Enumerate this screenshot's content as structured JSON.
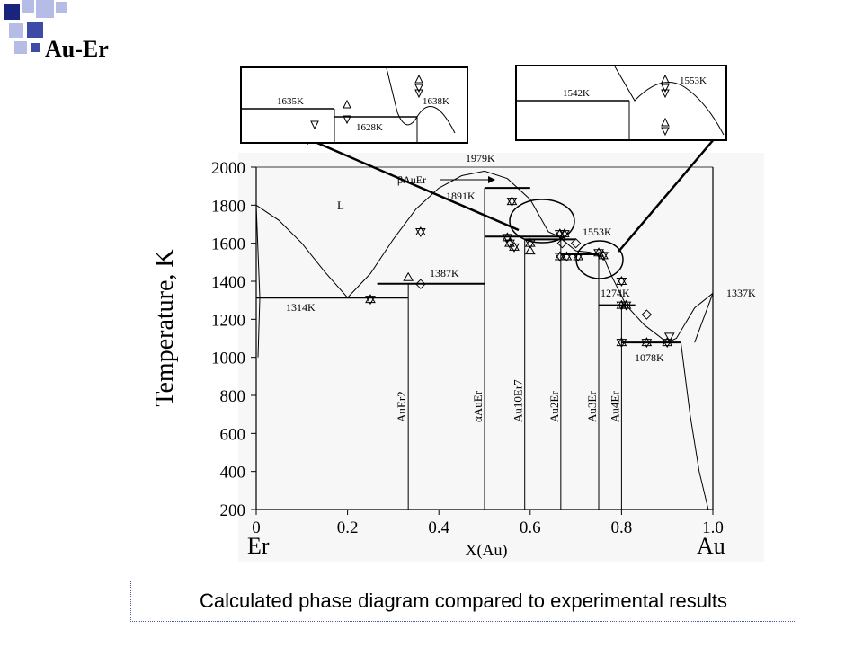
{
  "slide": {
    "title": "Au-Er",
    "caption": "Calculated phase diagram compared to experimental results"
  },
  "colors": {
    "square_dark": "#1a237e",
    "square_mid": "#3d4aa6",
    "square_light": "#b5bde6",
    "caption_border": "#4a5aa8"
  },
  "chart_data": {
    "type": "phase-diagram",
    "xlabel": "X(Au)",
    "ylabel": "Temperature, K",
    "xlim": [
      0,
      1.0
    ],
    "ylim": [
      200,
      2000
    ],
    "x_ticks": [
      "0",
      "0.2",
      "0.4",
      "0.6",
      "0.8",
      "1.0"
    ],
    "x_tick_values": [
      0,
      0.2,
      0.4,
      0.6,
      0.8,
      1.0
    ],
    "y_ticks": [
      "200",
      "400",
      "600",
      "800",
      "1000",
      "1200",
      "1400",
      "1600",
      "1800",
      "2000"
    ],
    "y_tick_values": [
      200,
      400,
      600,
      800,
      1000,
      1200,
      1400,
      1600,
      1800,
      2000
    ],
    "left_element": "Er",
    "right_element": "Au",
    "liquid_label": "L",
    "compounds": [
      {
        "name": "AuEr2",
        "x": 0.333
      },
      {
        "name": "αAuEr",
        "x": 0.5
      },
      {
        "name": "Au10Er7",
        "x": 0.588
      },
      {
        "name": "Au2Er",
        "x": 0.667
      },
      {
        "name": "Au3Er",
        "x": 0.75
      },
      {
        "name": "Au4Er",
        "x": 0.8
      }
    ],
    "beta_phase": {
      "name": "βAuEr",
      "x_range": [
        0.5,
        0.6
      ],
      "T": 1891
    },
    "liquidus": [
      [
        0,
        1800
      ],
      [
        0.05,
        1720
      ],
      [
        0.1,
        1600
      ],
      [
        0.15,
        1450
      ],
      [
        0.2,
        1314
      ],
      [
        0.25,
        1440
      ],
      [
        0.3,
        1620
      ],
      [
        0.35,
        1780
      ],
      [
        0.4,
        1890
      ],
      [
        0.45,
        1955
      ],
      [
        0.5,
        1979
      ],
      [
        0.55,
        1940
      ],
      [
        0.6,
        1830
      ],
      [
        0.64,
        1660
      ],
      [
        0.66,
        1638
      ],
      [
        0.68,
        1600
      ],
      [
        0.7,
        1560
      ],
      [
        0.73,
        1553
      ],
      [
        0.76,
        1530
      ],
      [
        0.78,
        1420
      ],
      [
        0.81,
        1274
      ],
      [
        0.85,
        1170
      ],
      [
        0.9,
        1078
      ],
      [
        0.92,
        1100
      ],
      [
        0.96,
        1260
      ],
      [
        1.0,
        1337
      ]
    ],
    "solidus_au_side": [
      [
        0.93,
        1078
      ],
      [
        0.95,
        700
      ],
      [
        0.97,
        400
      ],
      [
        0.99,
        200
      ]
    ],
    "invariants": [
      {
        "label": "1314K",
        "T": 1314,
        "x_range": [
          0.0,
          0.333
        ]
      },
      {
        "label": "1387K",
        "T": 1387,
        "x_range": [
          0.265,
          0.5
        ]
      },
      {
        "label": "1891K",
        "T": 1891,
        "x_range": [
          0.5,
          0.6
        ]
      },
      {
        "label": "1979K",
        "T": 1979
      },
      {
        "label": "1553K",
        "T": 1553
      },
      {
        "label": "1274K",
        "T": 1274,
        "x_range": [
          0.75,
          0.83
        ]
      },
      {
        "label": "1078K",
        "T": 1078,
        "x_range": [
          0.8,
          0.93
        ]
      },
      {
        "label": "1337K",
        "T": 1337
      }
    ],
    "three_phase_lines": [
      {
        "T": 1635,
        "x_range": [
          0.5,
          0.67
        ]
      },
      {
        "T": 1620,
        "x_range": [
          0.588,
          0.7
        ]
      },
      {
        "T": 1542,
        "x_range": [
          0.667,
          0.75
        ]
      }
    ],
    "experimental_points": [
      {
        "x": 0.25,
        "T": 1305,
        "type": "star"
      },
      {
        "x": 0.333,
        "T": 1420,
        "type": "triangle-up"
      },
      {
        "x": 0.36,
        "T": 1385,
        "type": "diamond"
      },
      {
        "x": 0.36,
        "T": 1660,
        "type": "hourglass"
      },
      {
        "x": 0.56,
        "T": 1820,
        "type": "star"
      },
      {
        "x": 0.55,
        "T": 1630,
        "type": "star"
      },
      {
        "x": 0.555,
        "T": 1600,
        "type": "star"
      },
      {
        "x": 0.565,
        "T": 1580,
        "type": "star"
      },
      {
        "x": 0.6,
        "T": 1600,
        "type": "star"
      },
      {
        "x": 0.6,
        "T": 1560,
        "type": "triangle-up"
      },
      {
        "x": 0.665,
        "T": 1650,
        "type": "hourglass"
      },
      {
        "x": 0.675,
        "T": 1650,
        "type": "star"
      },
      {
        "x": 0.67,
        "T": 1600,
        "type": "diamond"
      },
      {
        "x": 0.665,
        "T": 1530,
        "type": "star"
      },
      {
        "x": 0.68,
        "T": 1530,
        "type": "star"
      },
      {
        "x": 0.7,
        "T": 1600,
        "type": "diamond"
      },
      {
        "x": 0.705,
        "T": 1530,
        "type": "hourglass"
      },
      {
        "x": 0.75,
        "T": 1550,
        "type": "star"
      },
      {
        "x": 0.76,
        "T": 1535,
        "type": "hourglass"
      },
      {
        "x": 0.8,
        "T": 1400,
        "type": "hourglass"
      },
      {
        "x": 0.8,
        "T": 1274,
        "type": "hourglass"
      },
      {
        "x": 0.81,
        "T": 1274,
        "type": "star"
      },
      {
        "x": 0.855,
        "T": 1225,
        "type": "diamond"
      },
      {
        "x": 0.8,
        "T": 1078,
        "type": "hourglass"
      },
      {
        "x": 0.855,
        "T": 1078,
        "type": "star"
      },
      {
        "x": 0.905,
        "T": 1110,
        "type": "triangle-down"
      },
      {
        "x": 0.9,
        "T": 1078,
        "type": "star"
      }
    ],
    "inset_left": {
      "labels": [
        "1635K",
        "1628K",
        "1638K"
      ]
    },
    "inset_right": {
      "labels": [
        "1542K",
        "1553K"
      ]
    }
  }
}
